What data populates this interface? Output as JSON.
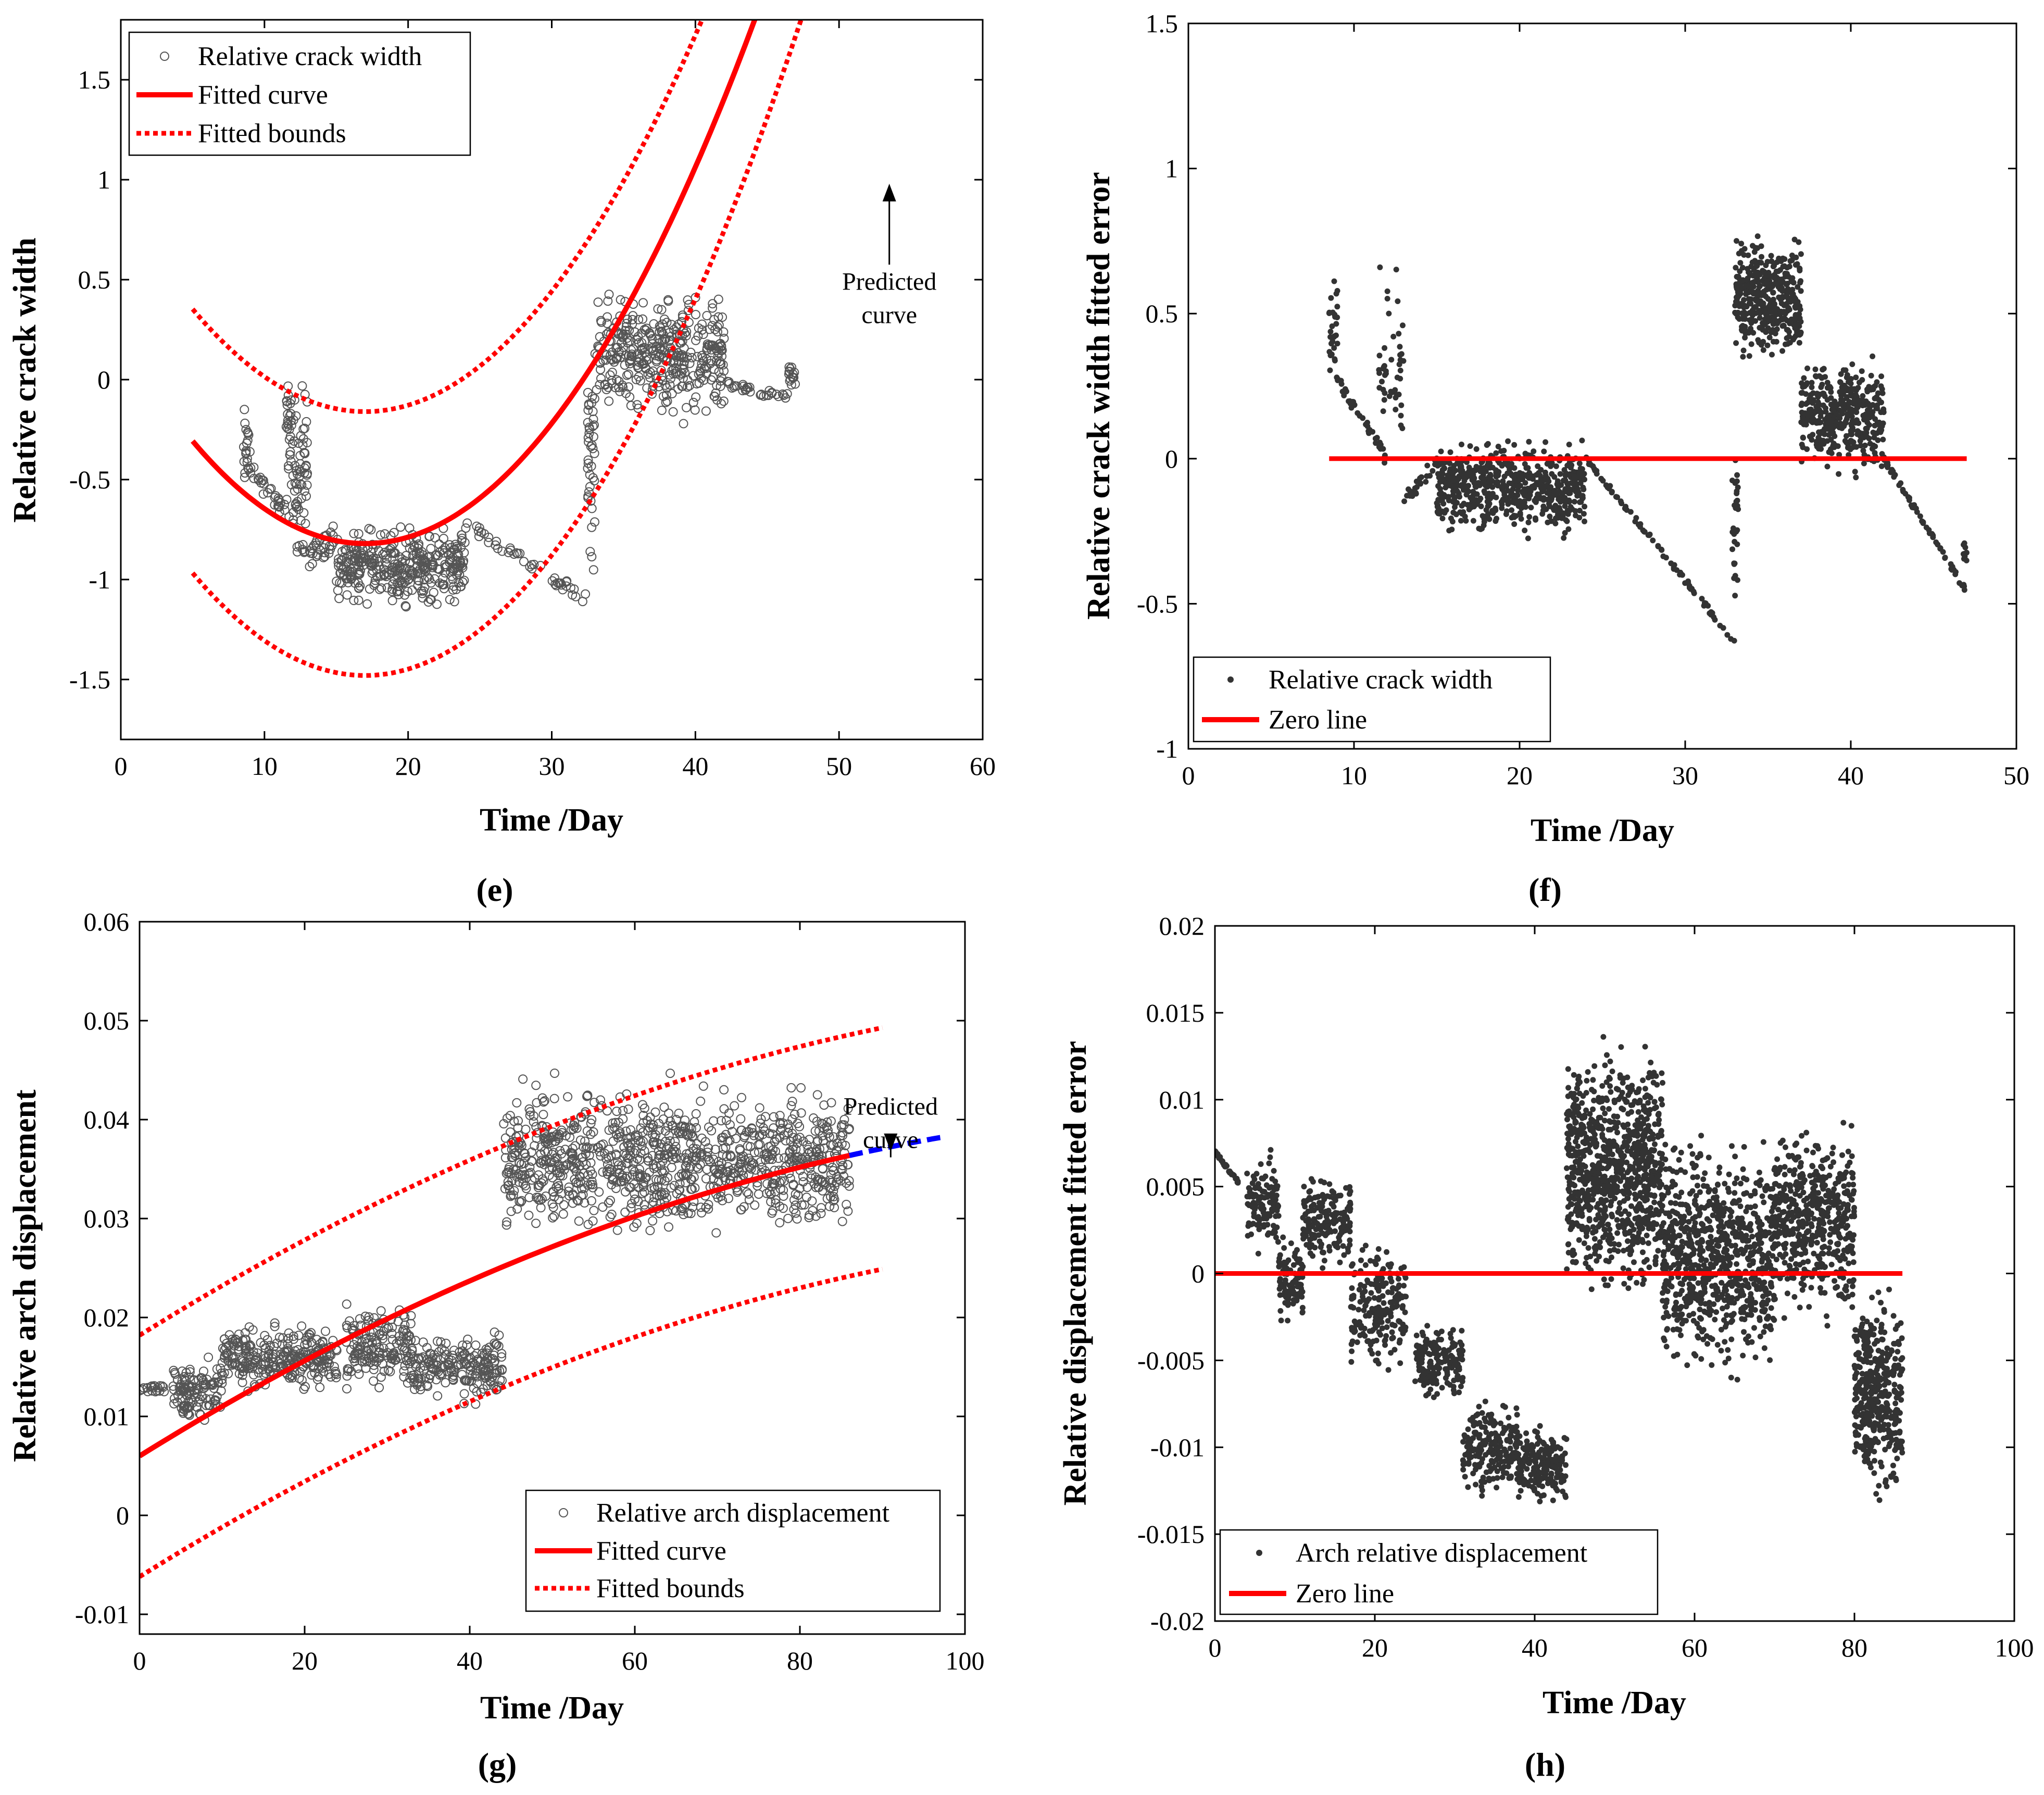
{
  "chart_data": [
    {
      "id": "e",
      "type": "scatter",
      "panel_label": "(e)",
      "xlabel": "Time /Day",
      "ylabel": "Relative crack width",
      "xlim": [
        0,
        60
      ],
      "ylim": [
        -1.8,
        1.8
      ],
      "xticks": [
        0,
        10,
        20,
        30,
        40,
        50,
        60
      ],
      "xtick_labels": [
        "0",
        "10",
        "20",
        "30",
        "40",
        "50",
        "60"
      ],
      "yticks": [
        -1.5,
        -1,
        -0.5,
        0,
        0.5,
        1,
        1.5
      ],
      "ytick_labels": [
        "-1.5",
        "-1",
        "-0.5",
        "0",
        "0.5",
        "1",
        "1.5"
      ],
      "legend_position": "top-left",
      "legend": [
        {
          "label": "Relative crack width",
          "style": "circle"
        },
        {
          "label": "Fitted curve",
          "style": "solid-red"
        },
        {
          "label": "Fitted bounds",
          "style": "dotted-red"
        }
      ],
      "annotation": {
        "lines": [
          "Predicted",
          "curve"
        ],
        "x": 53.5,
        "y": 0.45,
        "arrow_to": [
          53.5,
          0.98
        ]
      },
      "fit": {
        "vertex_x": 17,
        "vertex_y": -0.82,
        "a": 0.00356,
        "x_start": 5,
        "x_end": 47,
        "pred_end": 57,
        "band": 0.66,
        "bound_end": 50
      },
      "scatter_segments": [
        {
          "x0": 8.5,
          "x1": 9,
          "center": -0.35,
          "spread": 0.3,
          "n": 20
        },
        {
          "x0": 9,
          "x1": 12,
          "ramp": [
            -0.45,
            -0.72
          ],
          "spread": 0.04,
          "n": 30
        },
        {
          "x0": 11.5,
          "x1": 12,
          "center": -0.3,
          "spread": 0.4,
          "n": 30
        },
        {
          "x0": 12,
          "x1": 13,
          "center": -0.45,
          "spread": 0.6,
          "n": 60
        },
        {
          "x0": 13,
          "x1": 15,
          "ramp": [
            -0.9,
            -0.78
          ],
          "spread": 0.06,
          "n": 30
        },
        {
          "x0": 15,
          "x1": 24,
          "center": -0.93,
          "spread": 0.24,
          "n": 350
        },
        {
          "x0": 24,
          "x1": 32.5,
          "ramp": [
            -0.72,
            -1.1
          ],
          "spread": 0.03,
          "n": 45
        },
        {
          "x0": 32.5,
          "x1": 33,
          "center": -0.45,
          "spread": 0.6,
          "n": 40
        },
        {
          "x0": 33,
          "x1": 42,
          "center": 0.12,
          "spread": 0.38,
          "n": 380
        },
        {
          "x0": 42,
          "x1": 46.5,
          "ramp": [
            -0.02,
            -0.09
          ],
          "spread": 0.02,
          "n": 30
        },
        {
          "x0": 46.5,
          "x1": 47,
          "center": 0.03,
          "spread": 0.09,
          "n": 15
        }
      ]
    },
    {
      "id": "f",
      "type": "scatter",
      "panel_label": "(f)",
      "xlabel": "Time /Day",
      "ylabel": "Relative crack width fitted error",
      "xlim": [
        0,
        50
      ],
      "ylim": [
        -1,
        1.5
      ],
      "xticks": [
        0,
        10,
        20,
        30,
        40,
        50
      ],
      "xtick_labels": [
        "0",
        "10",
        "20",
        "30",
        "40",
        "50"
      ],
      "yticks": [
        -1,
        -0.5,
        0,
        0.5,
        1,
        1.5
      ],
      "ytick_labels": [
        "-1",
        "-0.5",
        "0",
        "0.5",
        "1",
        "1.5"
      ],
      "legend_position": "bottom-left",
      "legend": [
        {
          "label": "Relative crack width",
          "style": "dot"
        },
        {
          "label": "Zero line",
          "style": "solid-red"
        }
      ],
      "zero_line": {
        "x_start": 8.5,
        "x_end": 47
      },
      "scatter_segments": [
        {
          "x0": 8.5,
          "x1": 9,
          "center": 0.45,
          "spread": 0.2,
          "n": 30
        },
        {
          "x0": 9,
          "x1": 12,
          "ramp": [
            0.27,
            0.0
          ],
          "spread": 0.02,
          "n": 40
        },
        {
          "x0": 11.5,
          "x1": 13,
          "center": 0.3,
          "spread": 0.4,
          "n": 50
        },
        {
          "x0": 13,
          "x1": 15,
          "ramp": [
            -0.15,
            0.0
          ],
          "spread": 0.03,
          "n": 25
        },
        {
          "x0": 15,
          "x1": 24,
          "center": -0.1,
          "spread": 0.2,
          "n": 600
        },
        {
          "x0": 24,
          "x1": 33,
          "ramp": [
            0.0,
            -0.63
          ],
          "spread": 0.01,
          "n": 80
        },
        {
          "x0": 32.8,
          "x1": 33.2,
          "center": -0.2,
          "spread": 0.4,
          "n": 30
        },
        {
          "x0": 33,
          "x1": 37,
          "center": 0.55,
          "spread": 0.25,
          "n": 400
        },
        {
          "x0": 37,
          "x1": 42,
          "center": 0.15,
          "spread": 0.25,
          "n": 400
        },
        {
          "x0": 42,
          "x1": 47,
          "ramp": [
            0.0,
            -0.46
          ],
          "spread": 0.01,
          "n": 60
        },
        {
          "x0": 46.8,
          "x1": 47,
          "center": -0.33,
          "spread": 0.1,
          "n": 10
        }
      ]
    },
    {
      "id": "g",
      "type": "scatter",
      "panel_label": "(g)",
      "xlabel": "Time /Day",
      "ylabel": "Relative arch displacement",
      "xlim": [
        0,
        100
      ],
      "ylim": [
        -0.012,
        0.06
      ],
      "xticks": [
        0,
        20,
        40,
        60,
        80,
        100
      ],
      "xtick_labels": [
        "0",
        "20",
        "40",
        "60",
        "80",
        "100"
      ],
      "yticks": [
        -0.01,
        0,
        0.01,
        0.02,
        0.03,
        0.04,
        0.05,
        0.06
      ],
      "ytick_labels": [
        "-0.01",
        "0",
        "0.01",
        "0.02",
        "0.03",
        "0.04",
        "0.05",
        "0.06"
      ],
      "legend_position": "bottom-right",
      "legend": [
        {
          "label": "Relative arch displacement",
          "style": "circle"
        },
        {
          "label": "Fitted curve",
          "style": "solid-red"
        },
        {
          "label": "Fitted bounds",
          "style": "dotted-red"
        }
      ],
      "annotation": {
        "lines": [
          "Predicted",
          "curve"
        ],
        "x": 91,
        "y": 0.0405,
        "arrow_to": [
          91,
          0.0368
        ]
      },
      "fit": {
        "y0": 0.006,
        "c1": 0.00052,
        "c2": 1.94e-06,
        "x_end": 86,
        "pred_end": 97,
        "band": 0.0122,
        "bound_end": 90
      },
      "scatter_segments": [
        {
          "x0": 0,
          "x1": 3,
          "ramp": [
            0.0128,
            0.0128
          ],
          "spread": 0.0003,
          "n": 20
        },
        {
          "x0": 4,
          "x1": 10,
          "center": 0.0125,
          "spread": 0.004,
          "n": 120
        },
        {
          "x0": 10,
          "x1": 16,
          "center": 0.016,
          "spread": 0.004,
          "n": 120
        },
        {
          "x0": 16,
          "x1": 24,
          "center": 0.016,
          "spread": 0.004,
          "n": 160
        },
        {
          "x0": 25,
          "x1": 33,
          "center": 0.017,
          "spread": 0.005,
          "n": 160
        },
        {
          "x0": 33,
          "x1": 44,
          "center": 0.015,
          "spread": 0.004,
          "n": 200
        },
        {
          "x0": 44,
          "x1": 86,
          "center": 0.036,
          "spread": 0.009,
          "n": 1000
        }
      ]
    },
    {
      "id": "h",
      "type": "scatter",
      "panel_label": "(h)",
      "xlabel": "Time /Day",
      "ylabel": "Relative displacement fitted error",
      "xlim": [
        0,
        100
      ],
      "ylim": [
        -0.02,
        0.02
      ],
      "xticks": [
        0,
        20,
        40,
        60,
        80,
        100
      ],
      "xtick_labels": [
        "0",
        "20",
        "40",
        "60",
        "80",
        "100"
      ],
      "yticks": [
        -0.02,
        -0.015,
        -0.01,
        -0.005,
        0,
        0.005,
        0.01,
        0.015,
        0.02
      ],
      "ytick_labels": [
        "-0.02",
        "-0.015",
        "-0.01",
        "-0.005",
        "0",
        "0.005",
        "0.01",
        "0.015",
        "0.02"
      ],
      "legend_position": "bottom-left",
      "legend": [
        {
          "label": "Arch relative displacement",
          "style": "dot"
        },
        {
          "label": "Zero line",
          "style": "solid-red"
        }
      ],
      "zero_line": {
        "x_start": 0,
        "x_end": 86
      },
      "scatter_segments": [
        {
          "x0": 0,
          "x1": 3,
          "ramp": [
            0.007,
            0.0052
          ],
          "spread": 0.0001,
          "n": 30
        },
        {
          "x0": 4,
          "x1": 8,
          "center": 0.004,
          "spread": 0.0035,
          "n": 120
        },
        {
          "x0": 8,
          "x1": 11,
          "center": -0.0005,
          "spread": 0.003,
          "n": 100
        },
        {
          "x0": 11,
          "x1": 17,
          "center": 0.003,
          "spread": 0.003,
          "n": 180
        },
        {
          "x0": 17,
          "x1": 24,
          "center": -0.002,
          "spread": 0.0045,
          "n": 200
        },
        {
          "x0": 25,
          "x1": 31,
          "center": -0.005,
          "spread": 0.003,
          "n": 180
        },
        {
          "x0": 31,
          "x1": 38,
          "center": -0.01,
          "spread": 0.003,
          "n": 200
        },
        {
          "x0": 38,
          "x1": 44,
          "center": -0.011,
          "spread": 0.003,
          "n": 180
        },
        {
          "x0": 44,
          "x1": 56,
          "center": 0.006,
          "spread": 0.0085,
          "n": 900
        },
        {
          "x0": 56,
          "x1": 70,
          "center": 0.001,
          "spread": 0.008,
          "n": 800
        },
        {
          "x0": 70,
          "x1": 80,
          "center": 0.003,
          "spread": 0.007,
          "n": 500
        },
        {
          "x0": 80,
          "x1": 86,
          "center": -0.007,
          "spread": 0.007,
          "n": 400
        }
      ]
    }
  ]
}
